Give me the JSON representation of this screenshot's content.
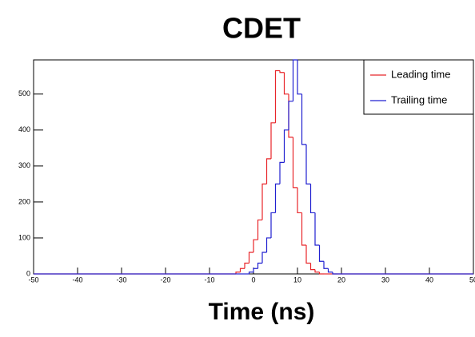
{
  "chart_data": {
    "type": "histogram",
    "title": "CDET",
    "xlabel": "Time (ns)",
    "bins": [
      -50,
      -49,
      -48,
      -47,
      -46,
      -45,
      -44,
      -43,
      -42,
      -41,
      -40,
      -39,
      -38,
      -37,
      -36,
      -35,
      -34,
      -33,
      -32,
      -31,
      -30,
      -29,
      -28,
      -27,
      -26,
      -25,
      -24,
      -23,
      -22,
      -21,
      -20,
      -19,
      -18,
      -17,
      -16,
      -15,
      -14,
      -13,
      -12,
      -11,
      -10,
      -9,
      -8,
      -7,
      -6,
      -5,
      -4,
      -3,
      -2,
      -1,
      0,
      1,
      2,
      3,
      4,
      5,
      6,
      7,
      8,
      9,
      10,
      11,
      12,
      13,
      14,
      15,
      16,
      17,
      18,
      19,
      20,
      21,
      22,
      23,
      24,
      25,
      26,
      27,
      28,
      29,
      30,
      31,
      32,
      33,
      34,
      35,
      36,
      37,
      38,
      39,
      40,
      41,
      42,
      43,
      44,
      45,
      46,
      47,
      48,
      49,
      50
    ],
    "series": [
      {
        "name": "Leading time",
        "color": "#e8262a",
        "values": [
          0,
          0,
          0,
          0,
          0,
          0,
          0,
          0,
          0,
          0,
          0,
          0,
          0,
          0,
          0,
          0,
          0,
          0,
          0,
          0,
          0,
          0,
          0,
          0,
          0,
          0,
          0,
          0,
          0,
          0,
          0,
          0,
          0,
          0,
          0,
          0,
          0,
          0,
          0,
          0,
          0,
          0,
          0,
          0,
          0,
          0,
          5,
          15,
          30,
          60,
          95,
          150,
          250,
          320,
          420,
          565,
          560,
          500,
          380,
          240,
          170,
          80,
          30,
          12,
          5,
          0,
          0,
          0,
          0,
          0,
          0,
          0,
          0,
          0,
          0,
          0,
          0,
          0,
          0,
          0,
          0,
          0,
          0,
          0,
          0,
          0,
          0,
          0,
          0,
          0,
          0,
          0,
          0,
          0,
          0,
          0,
          0,
          0,
          0,
          0
        ]
      },
      {
        "name": "Trailing time",
        "color": "#2020d0",
        "values": [
          0,
          0,
          0,
          0,
          0,
          0,
          0,
          0,
          0,
          0,
          0,
          0,
          0,
          0,
          0,
          0,
          0,
          0,
          0,
          0,
          0,
          0,
          0,
          0,
          0,
          0,
          0,
          0,
          0,
          0,
          0,
          0,
          0,
          0,
          0,
          0,
          0,
          0,
          0,
          0,
          0,
          0,
          0,
          0,
          0,
          0,
          0,
          0,
          0,
          5,
          15,
          30,
          60,
          100,
          170,
          250,
          310,
          400,
          480,
          595,
          500,
          360,
          250,
          170,
          80,
          35,
          15,
          5,
          0,
          0,
          0,
          0,
          0,
          0,
          0,
          0,
          0,
          0,
          0,
          0,
          0,
          0,
          0,
          0,
          0,
          0,
          0,
          0,
          0,
          0,
          0,
          0,
          0,
          0,
          0,
          0,
          0,
          0,
          0,
          0
        ]
      }
    ],
    "xlim": [
      -50,
      50
    ],
    "ylim": [
      0,
      595
    ],
    "xticks": [
      -50,
      -40,
      -30,
      -20,
      -10,
      0,
      10,
      20,
      30,
      40,
      50
    ],
    "yticks": [
      0,
      100,
      200,
      300,
      400,
      500
    ],
    "legend": "top-right"
  }
}
